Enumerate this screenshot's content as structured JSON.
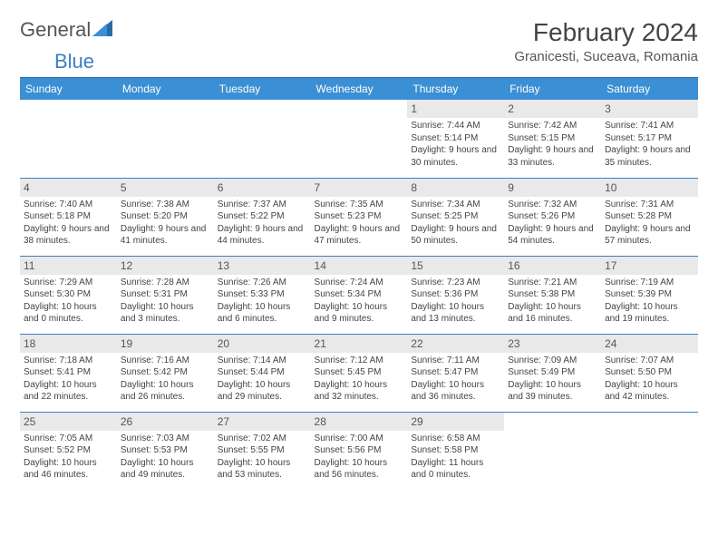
{
  "logo": {
    "general": "General",
    "blue": "Blue"
  },
  "title": "February 2024",
  "location": "Granicesti, Suceava, Romania",
  "colors": {
    "header_bg": "#3b8fd4",
    "header_border": "#2a6aa5",
    "row_border": "#3b7fc4",
    "daynum_bg": "#e9e9e9",
    "text": "#444444",
    "background": "#ffffff"
  },
  "days": [
    "Sunday",
    "Monday",
    "Tuesday",
    "Wednesday",
    "Thursday",
    "Friday",
    "Saturday"
  ],
  "weeks": [
    [
      {
        "n": "",
        "sr": "",
        "ss": "",
        "dl": ""
      },
      {
        "n": "",
        "sr": "",
        "ss": "",
        "dl": ""
      },
      {
        "n": "",
        "sr": "",
        "ss": "",
        "dl": ""
      },
      {
        "n": "",
        "sr": "",
        "ss": "",
        "dl": ""
      },
      {
        "n": "1",
        "sr": "Sunrise: 7:44 AM",
        "ss": "Sunset: 5:14 PM",
        "dl": "Daylight: 9 hours and 30 minutes."
      },
      {
        "n": "2",
        "sr": "Sunrise: 7:42 AM",
        "ss": "Sunset: 5:15 PM",
        "dl": "Daylight: 9 hours and 33 minutes."
      },
      {
        "n": "3",
        "sr": "Sunrise: 7:41 AM",
        "ss": "Sunset: 5:17 PM",
        "dl": "Daylight: 9 hours and 35 minutes."
      }
    ],
    [
      {
        "n": "4",
        "sr": "Sunrise: 7:40 AM",
        "ss": "Sunset: 5:18 PM",
        "dl": "Daylight: 9 hours and 38 minutes."
      },
      {
        "n": "5",
        "sr": "Sunrise: 7:38 AM",
        "ss": "Sunset: 5:20 PM",
        "dl": "Daylight: 9 hours and 41 minutes."
      },
      {
        "n": "6",
        "sr": "Sunrise: 7:37 AM",
        "ss": "Sunset: 5:22 PM",
        "dl": "Daylight: 9 hours and 44 minutes."
      },
      {
        "n": "7",
        "sr": "Sunrise: 7:35 AM",
        "ss": "Sunset: 5:23 PM",
        "dl": "Daylight: 9 hours and 47 minutes."
      },
      {
        "n": "8",
        "sr": "Sunrise: 7:34 AM",
        "ss": "Sunset: 5:25 PM",
        "dl": "Daylight: 9 hours and 50 minutes."
      },
      {
        "n": "9",
        "sr": "Sunrise: 7:32 AM",
        "ss": "Sunset: 5:26 PM",
        "dl": "Daylight: 9 hours and 54 minutes."
      },
      {
        "n": "10",
        "sr": "Sunrise: 7:31 AM",
        "ss": "Sunset: 5:28 PM",
        "dl": "Daylight: 9 hours and 57 minutes."
      }
    ],
    [
      {
        "n": "11",
        "sr": "Sunrise: 7:29 AM",
        "ss": "Sunset: 5:30 PM",
        "dl": "Daylight: 10 hours and 0 minutes."
      },
      {
        "n": "12",
        "sr": "Sunrise: 7:28 AM",
        "ss": "Sunset: 5:31 PM",
        "dl": "Daylight: 10 hours and 3 minutes."
      },
      {
        "n": "13",
        "sr": "Sunrise: 7:26 AM",
        "ss": "Sunset: 5:33 PM",
        "dl": "Daylight: 10 hours and 6 minutes."
      },
      {
        "n": "14",
        "sr": "Sunrise: 7:24 AM",
        "ss": "Sunset: 5:34 PM",
        "dl": "Daylight: 10 hours and 9 minutes."
      },
      {
        "n": "15",
        "sr": "Sunrise: 7:23 AM",
        "ss": "Sunset: 5:36 PM",
        "dl": "Daylight: 10 hours and 13 minutes."
      },
      {
        "n": "16",
        "sr": "Sunrise: 7:21 AM",
        "ss": "Sunset: 5:38 PM",
        "dl": "Daylight: 10 hours and 16 minutes."
      },
      {
        "n": "17",
        "sr": "Sunrise: 7:19 AM",
        "ss": "Sunset: 5:39 PM",
        "dl": "Daylight: 10 hours and 19 minutes."
      }
    ],
    [
      {
        "n": "18",
        "sr": "Sunrise: 7:18 AM",
        "ss": "Sunset: 5:41 PM",
        "dl": "Daylight: 10 hours and 22 minutes."
      },
      {
        "n": "19",
        "sr": "Sunrise: 7:16 AM",
        "ss": "Sunset: 5:42 PM",
        "dl": "Daylight: 10 hours and 26 minutes."
      },
      {
        "n": "20",
        "sr": "Sunrise: 7:14 AM",
        "ss": "Sunset: 5:44 PM",
        "dl": "Daylight: 10 hours and 29 minutes."
      },
      {
        "n": "21",
        "sr": "Sunrise: 7:12 AM",
        "ss": "Sunset: 5:45 PM",
        "dl": "Daylight: 10 hours and 32 minutes."
      },
      {
        "n": "22",
        "sr": "Sunrise: 7:11 AM",
        "ss": "Sunset: 5:47 PM",
        "dl": "Daylight: 10 hours and 36 minutes."
      },
      {
        "n": "23",
        "sr": "Sunrise: 7:09 AM",
        "ss": "Sunset: 5:49 PM",
        "dl": "Daylight: 10 hours and 39 minutes."
      },
      {
        "n": "24",
        "sr": "Sunrise: 7:07 AM",
        "ss": "Sunset: 5:50 PM",
        "dl": "Daylight: 10 hours and 42 minutes."
      }
    ],
    [
      {
        "n": "25",
        "sr": "Sunrise: 7:05 AM",
        "ss": "Sunset: 5:52 PM",
        "dl": "Daylight: 10 hours and 46 minutes."
      },
      {
        "n": "26",
        "sr": "Sunrise: 7:03 AM",
        "ss": "Sunset: 5:53 PM",
        "dl": "Daylight: 10 hours and 49 minutes."
      },
      {
        "n": "27",
        "sr": "Sunrise: 7:02 AM",
        "ss": "Sunset: 5:55 PM",
        "dl": "Daylight: 10 hours and 53 minutes."
      },
      {
        "n": "28",
        "sr": "Sunrise: 7:00 AM",
        "ss": "Sunset: 5:56 PM",
        "dl": "Daylight: 10 hours and 56 minutes."
      },
      {
        "n": "29",
        "sr": "Sunrise: 6:58 AM",
        "ss": "Sunset: 5:58 PM",
        "dl": "Daylight: 11 hours and 0 minutes."
      },
      {
        "n": "",
        "sr": "",
        "ss": "",
        "dl": ""
      },
      {
        "n": "",
        "sr": "",
        "ss": "",
        "dl": ""
      }
    ]
  ]
}
